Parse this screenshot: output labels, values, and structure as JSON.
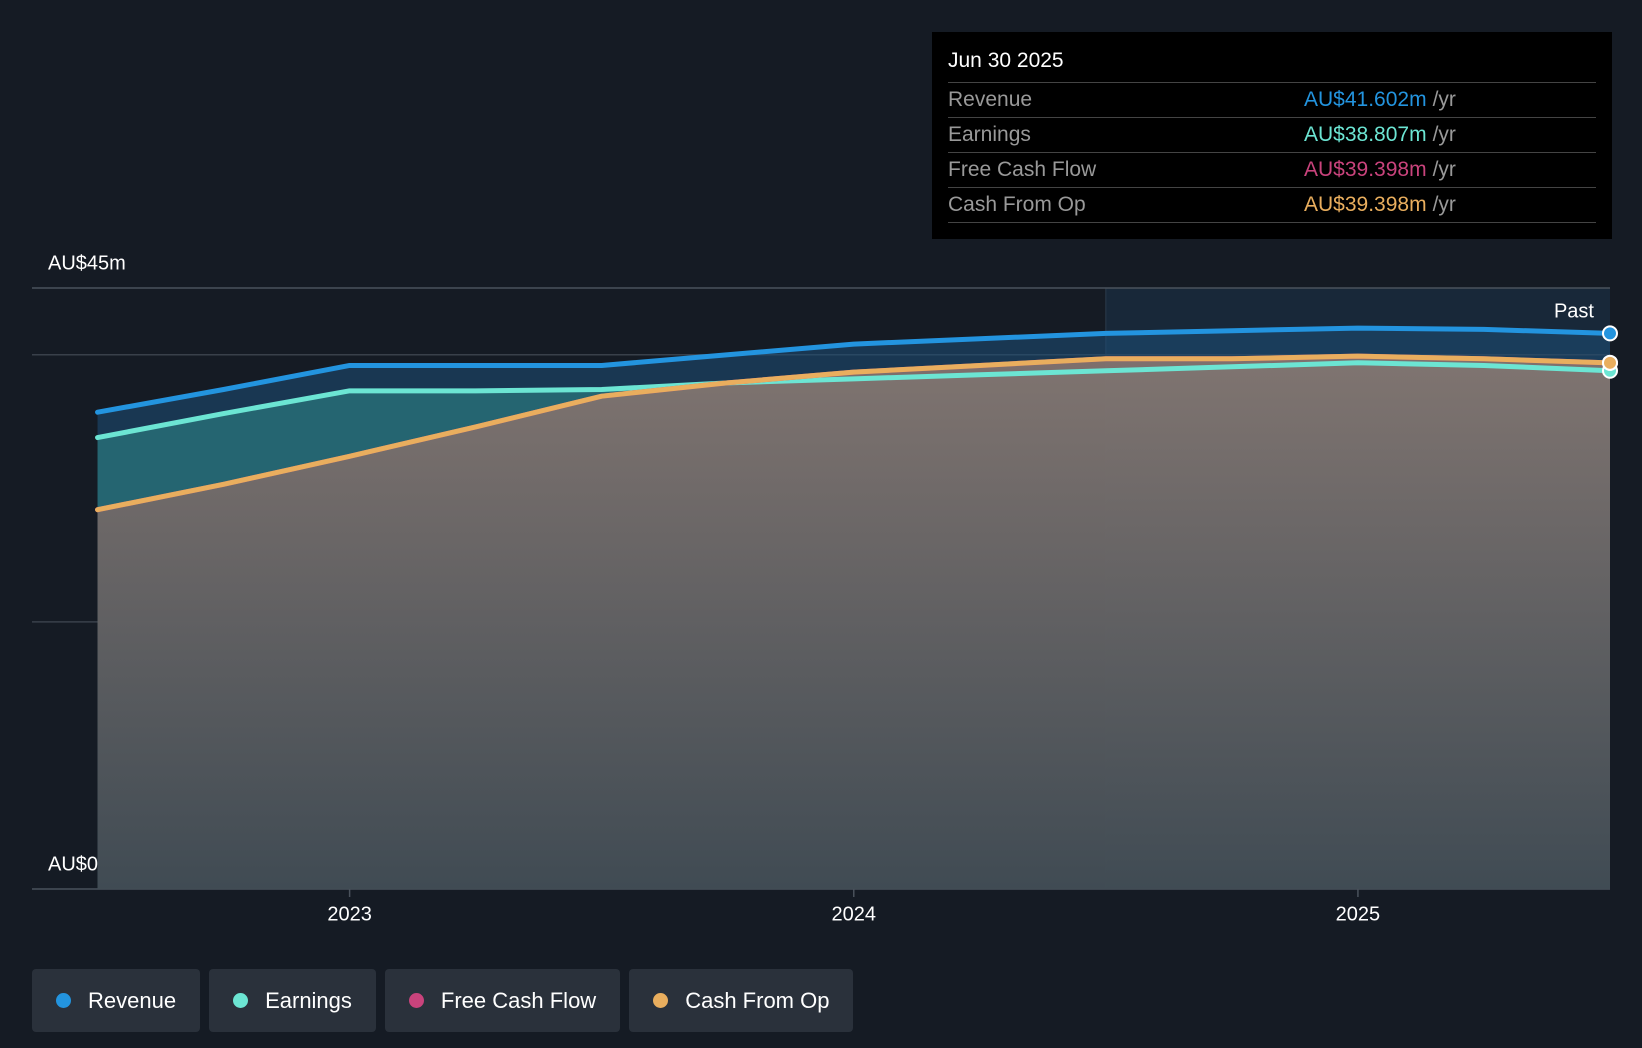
{
  "chart_data": {
    "type": "area",
    "x": [
      2022.5,
      2022.75,
      2023.0,
      2023.25,
      2023.5,
      2023.75,
      2024.0,
      2024.25,
      2024.5,
      2024.75,
      2025.0,
      2025.25,
      2025.5
    ],
    "series": [
      {
        "name": "Revenue",
        "color": "#2394df",
        "values": [
          35.7,
          37.4,
          39.2,
          39.2,
          39.2,
          40.0,
          40.8,
          41.2,
          41.6,
          41.8,
          42.0,
          41.9,
          41.602
        ]
      },
      {
        "name": "Earnings",
        "color": "#6ce5d3",
        "values": [
          33.8,
          35.6,
          37.3,
          37.3,
          37.4,
          37.9,
          38.2,
          38.5,
          38.8,
          39.1,
          39.4,
          39.2,
          38.807
        ]
      },
      {
        "name": "Free Cash Flow",
        "color": "#c9437c",
        "values": [
          28.4,
          30.3,
          32.4,
          34.6,
          36.9,
          37.9,
          38.7,
          39.2,
          39.7,
          39.7,
          39.9,
          39.7,
          39.398
        ]
      },
      {
        "name": "Cash From Op",
        "color": "#e9ae5e",
        "values": [
          28.4,
          30.3,
          32.4,
          34.6,
          36.9,
          37.9,
          38.7,
          39.2,
          39.7,
          39.7,
          39.9,
          39.7,
          39.398
        ]
      }
    ],
    "xlim": [
      2022.37,
      2025.5
    ],
    "xticks": [
      2023,
      2024,
      2025
    ],
    "ylim": [
      0,
      45
    ],
    "yticks": [
      {
        "value": 0,
        "label": "AU$0"
      },
      {
        "value": 45,
        "label": "AU$45m"
      }
    ],
    "ygrid": [
      20,
      40
    ],
    "past_start": 2024.5,
    "past_label": "Past",
    "tooltip": {
      "title": "Jun 30 2025",
      "values": [
        "AU$41.602m",
        "AU$38.807m",
        "AU$39.398m",
        "AU$39.398m"
      ],
      "unit": "/yr"
    }
  }
}
